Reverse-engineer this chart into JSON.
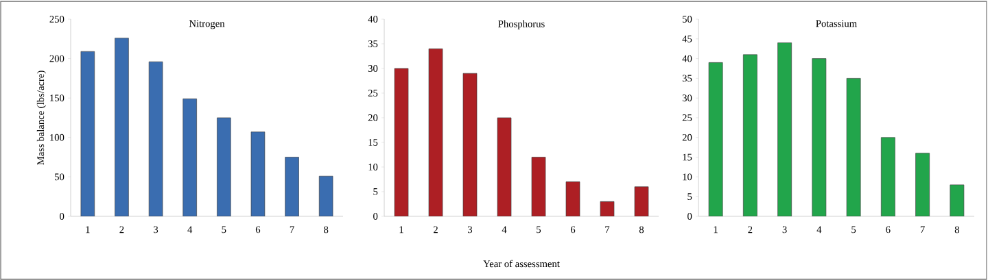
{
  "chart_data": [
    {
      "type": "bar",
      "title": "Nitrogen",
      "ylabel": "Mass balance (lbs/acre)",
      "categories": [
        "1",
        "2",
        "3",
        "4",
        "5",
        "6",
        "7",
        "8"
      ],
      "values": [
        209,
        226,
        196,
        149,
        125,
        107,
        75,
        51
      ],
      "color": "#3a6db0",
      "ylim": [
        0,
        250
      ],
      "yticks": [
        0,
        50,
        100,
        150,
        200,
        250
      ]
    },
    {
      "type": "bar",
      "title": "Phosphorus",
      "xlabel": "Year of assessment",
      "categories": [
        "1",
        "2",
        "3",
        "4",
        "5",
        "6",
        "7",
        "8"
      ],
      "values": [
        30,
        34,
        29,
        20,
        12,
        7,
        3,
        6
      ],
      "color": "#ad1f24",
      "ylim": [
        0,
        40
      ],
      "yticks": [
        0,
        5,
        10,
        15,
        20,
        25,
        30,
        35,
        40
      ]
    },
    {
      "type": "bar",
      "title": "Potassium",
      "categories": [
        "1",
        "2",
        "3",
        "4",
        "5",
        "6",
        "7",
        "8"
      ],
      "values": [
        39,
        41,
        44,
        40,
        35,
        20,
        16,
        8
      ],
      "color": "#22a54b",
      "ylim": [
        0,
        50
      ],
      "yticks": [
        0,
        5,
        10,
        15,
        20,
        25,
        30,
        35,
        40,
        45,
        50
      ]
    }
  ]
}
